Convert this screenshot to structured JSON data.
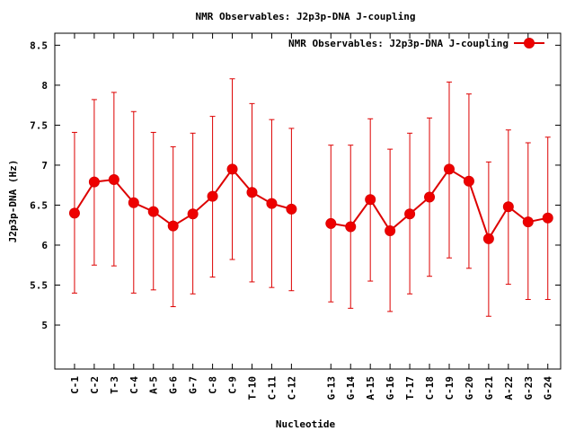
{
  "chart_data": {
    "type": "line",
    "title": "NMR Observables: J2p3p-DNA J-coupling",
    "xlabel": "Nucleotide",
    "ylabel": "J2p3p-DNA (Hz)",
    "ylim": [
      4.45,
      8.65
    ],
    "yticks": [
      "5",
      "5.5",
      "6",
      "6.5",
      "7",
      "7.5",
      "8",
      "8.5"
    ],
    "grid": false,
    "legend_position": "top-right",
    "color": "#dd0000",
    "categories": [
      "C-1",
      "C-2",
      "T-3",
      "C-4",
      "A-5",
      "G-6",
      "G-7",
      "C-8",
      "C-9",
      "T-10",
      "C-11",
      "C-12",
      "G-13",
      "G-14",
      "A-15",
      "G-16",
      "T-17",
      "C-18",
      "C-19",
      "G-20",
      "G-21",
      "A-22",
      "G-23",
      "G-24"
    ],
    "category_index": [
      1,
      2,
      3,
      4,
      5,
      6,
      7,
      8,
      9,
      10,
      11,
      12,
      14,
      15,
      16,
      17,
      18,
      19,
      20,
      21,
      22,
      23,
      24,
      25
    ],
    "series": [
      {
        "name": "NMR Observables: J2p3p-DNA J-coupling",
        "values": [
          6.4,
          6.79,
          6.82,
          6.53,
          6.42,
          6.24,
          6.39,
          6.61,
          6.95,
          6.66,
          6.52,
          6.45,
          6.27,
          6.23,
          6.57,
          6.18,
          6.39,
          6.6,
          6.95,
          6.8,
          6.08,
          6.48,
          6.29,
          6.34
        ],
        "error_low": [
          5.4,
          5.75,
          5.74,
          5.4,
          5.44,
          5.23,
          5.39,
          5.6,
          5.82,
          5.54,
          5.47,
          5.43,
          5.29,
          5.21,
          5.55,
          5.17,
          5.39,
          5.61,
          5.84,
          5.71,
          5.11,
          5.51,
          5.32,
          5.32
        ],
        "error_high": [
          7.41,
          7.82,
          7.91,
          7.67,
          7.41,
          7.23,
          7.4,
          7.61,
          8.08,
          7.77,
          7.57,
          7.46,
          7.25,
          7.25,
          7.58,
          7.2,
          7.4,
          7.59,
          8.04,
          7.89,
          7.04,
          7.44,
          7.28,
          7.35
        ]
      }
    ]
  }
}
